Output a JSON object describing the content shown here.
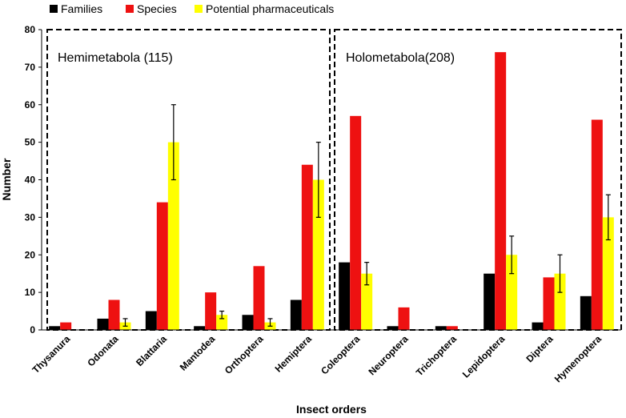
{
  "chart_data": {
    "type": "bar",
    "title": "",
    "xlabel": "Insect orders",
    "ylabel": "Number",
    "ylim": [
      0,
      80
    ],
    "yticks": [
      0,
      10,
      20,
      30,
      40,
      50,
      60,
      70,
      80
    ],
    "grid": false,
    "legend_position": "top-left",
    "categories": [
      "Thysanura",
      "Odonata",
      "Blattaria",
      "Mantodea",
      "Orthoptera",
      "Hemiptera",
      "Coleoptera",
      "Neuroptera",
      "Trichoptera",
      "Lepidoptera",
      "Diptera",
      "Hymenoptera"
    ],
    "series": [
      {
        "name": "Families",
        "color": "#000000",
        "values": [
          1,
          3,
          5,
          1,
          4,
          8,
          18,
          1,
          1,
          15,
          2,
          9
        ]
      },
      {
        "name": "Species",
        "color": "#ee1111",
        "values": [
          2,
          8,
          34,
          10,
          17,
          44,
          57,
          6,
          1,
          74,
          14,
          56
        ]
      },
      {
        "name": "Potential pharmaceuticals",
        "color": "#ffff00",
        "values": [
          0,
          2,
          50,
          4,
          2,
          40,
          15,
          0,
          0,
          20,
          15,
          30
        ],
        "errors": [
          0,
          1,
          10,
          1,
          1,
          10,
          3,
          0,
          0,
          5,
          5,
          6
        ]
      }
    ],
    "groups": [
      {
        "label": "Hemimetabola (115)",
        "categories": [
          "Thysanura",
          "Odonata",
          "Blattaria",
          "Mantodea",
          "Orthoptera",
          "Hemiptera"
        ]
      },
      {
        "label": "Holometabola(208)",
        "categories": [
          "Coleoptera",
          "Neuroptera",
          "Trichoptera",
          "Lepidoptera",
          "Diptera",
          "Hymenoptera"
        ]
      }
    ]
  }
}
